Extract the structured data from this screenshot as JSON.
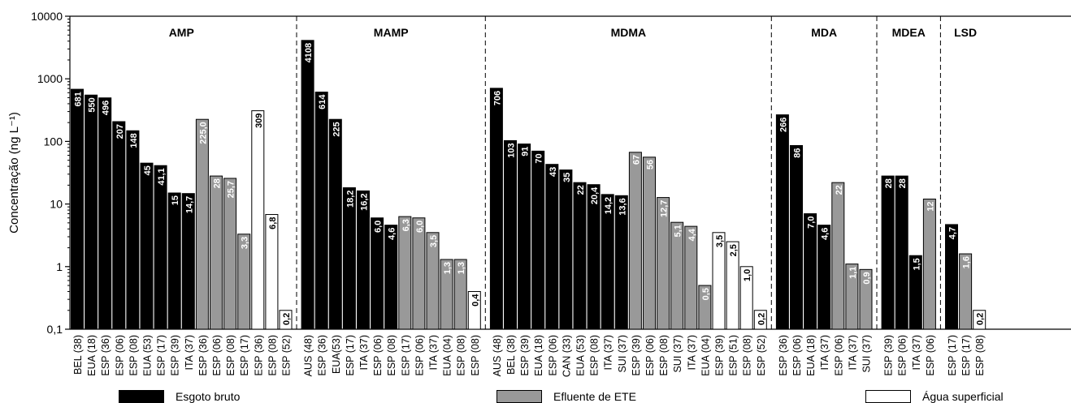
{
  "chart_data": {
    "type": "bar",
    "ylabel": "Concentração (ng L⁻¹)",
    "yscale": "log",
    "ylim": [
      0.1,
      10000
    ],
    "yticks": [
      "0,1",
      "1",
      "10",
      "100",
      "1000",
      "10000"
    ],
    "colors": {
      "Esgoto bruto": "#000000",
      "Efluente de ETE": "#999999",
      "Água superficial": "#ffffff"
    },
    "legend": [
      {
        "name": "Esgoto bruto",
        "color": "#000000"
      },
      {
        "name": "Efluente de ETE",
        "color": "#999999"
      },
      {
        "name": "Água superficial",
        "color": "#ffffff"
      }
    ],
    "groups": [
      {
        "name": "AMP",
        "bars": [
          {
            "label": "BEL (38)",
            "value": 681,
            "text": "681",
            "type": "Esgoto bruto"
          },
          {
            "label": "EUA (18)",
            "value": 550,
            "text": "550",
            "type": "Esgoto bruto"
          },
          {
            "label": "ESP (36)",
            "value": 496,
            "text": "496",
            "type": "Esgoto bruto"
          },
          {
            "label": "ESP (06)",
            "value": 207,
            "text": "207",
            "type": "Esgoto bruto"
          },
          {
            "label": "ESP (08)",
            "value": 148,
            "text": "148",
            "type": "Esgoto bruto"
          },
          {
            "label": "EUA (53)",
            "value": 45,
            "text": "45",
            "type": "Esgoto bruto"
          },
          {
            "label": "ESP (17)",
            "value": 41.1,
            "text": "41,1",
            "type": "Esgoto bruto"
          },
          {
            "label": "ESP (39)",
            "value": 15,
            "text": "15",
            "type": "Esgoto bruto"
          },
          {
            "label": "ITA (37)",
            "value": 14.7,
            "text": "14,7",
            "type": "Esgoto bruto"
          },
          {
            "label": "ESP (36)",
            "value": 225.0,
            "text": "225,0",
            "type": "Efluente de ETE"
          },
          {
            "label": "ESP (06)",
            "value": 28,
            "text": "28",
            "type": "Efluente de ETE"
          },
          {
            "label": "ESP (08)",
            "value": 25.7,
            "text": "25,7",
            "type": "Efluente de ETE"
          },
          {
            "label": "ESP (17)",
            "value": 3.3,
            "text": "3,3",
            "type": "Efluente de ETE"
          },
          {
            "label": "ESP (36)",
            "value": 309,
            "text": "309",
            "type": "Água superficial"
          },
          {
            "label": "ESP (08)",
            "value": 6.8,
            "text": "6,8",
            "type": "Água superficial"
          },
          {
            "label": "ESP (52)",
            "value": 0.2,
            "text": "0,2",
            "type": "Água superficial"
          }
        ]
      },
      {
        "name": "MAMP",
        "bars": [
          {
            "label": "AUS (48)",
            "value": 4108,
            "text": "4108",
            "type": "Esgoto bruto"
          },
          {
            "label": "ESP (36)",
            "value": 614,
            "text": "614",
            "type": "Esgoto bruto"
          },
          {
            "label": "EUA(53)",
            "value": 225,
            "text": "225",
            "type": "Esgoto bruto"
          },
          {
            "label": "ESP (17)",
            "value": 18.2,
            "text": "18,2",
            "type": "Esgoto bruto"
          },
          {
            "label": "ITA (37)",
            "value": 16.2,
            "text": "16,2",
            "type": "Esgoto bruto"
          },
          {
            "label": "ESP (06)",
            "value": 6.0,
            "text": "6,0",
            "type": "Esgoto bruto"
          },
          {
            "label": "ESP (08)",
            "value": 4.6,
            "text": "4,6",
            "type": "Esgoto bruto"
          },
          {
            "label": "ESP (17)",
            "value": 6.3,
            "text": "6,3",
            "type": "Efluente de ETE"
          },
          {
            "label": "ESP (06)",
            "value": 6.0,
            "text": "6,0",
            "type": "Efluente de ETE"
          },
          {
            "label": "ITA (37)",
            "value": 3.5,
            "text": "3,5",
            "type": "Efluente de ETE"
          },
          {
            "label": "EUA (04)",
            "value": 1.3,
            "text": "1,3",
            "type": "Efluente de ETE"
          },
          {
            "label": "ESP (08)",
            "value": 1.3,
            "text": "1,3",
            "type": "Efluente de ETE"
          },
          {
            "label": "ESP (08)",
            "value": 0.4,
            "text": "0,4",
            "type": "Água superficial"
          }
        ]
      },
      {
        "name": "MDMA",
        "bars": [
          {
            "label": "AUS (48)",
            "value": 706,
            "text": "706",
            "type": "Esgoto bruto"
          },
          {
            "label": "BEL (38)",
            "value": 103,
            "text": "103",
            "type": "Esgoto bruto"
          },
          {
            "label": "ESP (39)",
            "value": 91,
            "text": "91",
            "type": "Esgoto bruto"
          },
          {
            "label": "EUA (18)",
            "value": 70,
            "text": "70",
            "type": "Esgoto bruto"
          },
          {
            "label": "ESP (06)",
            "value": 43,
            "text": "43",
            "type": "Esgoto bruto"
          },
          {
            "label": "CAN (33)",
            "value": 35,
            "text": "35",
            "type": "Esgoto bruto"
          },
          {
            "label": "EUA (53)",
            "value": 22,
            "text": "22",
            "type": "Esgoto bruto"
          },
          {
            "label": "ESP (08)",
            "value": 20.4,
            "text": "20,4",
            "type": "Esgoto bruto"
          },
          {
            "label": "ITA (37)",
            "value": 14.2,
            "text": "14,2",
            "type": "Esgoto bruto"
          },
          {
            "label": "SUI (37)",
            "value": 13.6,
            "text": "13,6",
            "type": "Esgoto bruto"
          },
          {
            "label": "ESP (39)",
            "value": 67,
            "text": "67",
            "type": "Efluente de ETE"
          },
          {
            "label": "ESP (06)",
            "value": 56,
            "text": "56",
            "type": "Efluente de ETE"
          },
          {
            "label": "ESP (08)",
            "value": 12.7,
            "text": "12,7",
            "type": "Efluente de ETE"
          },
          {
            "label": "SUI (37)",
            "value": 5.1,
            "text": "5,1",
            "type": "Efluente de ETE"
          },
          {
            "label": "ITA (37)",
            "value": 4.4,
            "text": "4,4",
            "type": "Efluente de ETE"
          },
          {
            "label": "EUA (04)",
            "value": 0.5,
            "text": "0,5",
            "type": "Efluente de ETE"
          },
          {
            "label": "ESP (39)",
            "value": 3.5,
            "text": "3,5",
            "type": "Água superficial"
          },
          {
            "label": "ESP (51)",
            "value": 2.5,
            "text": "2,5",
            "type": "Água superficial"
          },
          {
            "label": "ESP (08)",
            "value": 1.0,
            "text": "1,0",
            "type": "Água superficial"
          },
          {
            "label": "ESP (52)",
            "value": 0.2,
            "text": "0,2",
            "type": "Água superficial"
          }
        ]
      },
      {
        "name": "MDA",
        "bars": [
          {
            "label": "ESP (36)",
            "value": 266,
            "text": "266",
            "type": "Esgoto bruto"
          },
          {
            "label": "ESP (06)",
            "value": 86,
            "text": "86",
            "type": "Esgoto bruto"
          },
          {
            "label": "EUA (18)",
            "value": 7.0,
            "text": "7,0",
            "type": "Esgoto bruto"
          },
          {
            "label": "ITA (37)",
            "value": 4.6,
            "text": "4,6",
            "type": "Esgoto bruto"
          },
          {
            "label": "ESP (06)",
            "value": 22,
            "text": "22",
            "type": "Efluente de ETE"
          },
          {
            "label": "ITA (37)",
            "value": 1.1,
            "text": "1,1",
            "type": "Efluente de ETE"
          },
          {
            "label": "SUI (37)",
            "value": 0.9,
            "text": "0,9",
            "type": "Efluente de ETE"
          }
        ]
      },
      {
        "name": "MDEA",
        "bars": [
          {
            "label": "ESP (39)",
            "value": 28,
            "text": "28",
            "type": "Esgoto bruto"
          },
          {
            "label": "ESP (06)",
            "value": 28,
            "text": "28",
            "type": "Esgoto bruto"
          },
          {
            "label": "ITA (37)",
            "value": 1.5,
            "text": "1,5",
            "type": "Esgoto bruto"
          },
          {
            "label": "ESP (06)",
            "value": 12,
            "text": "12",
            "type": "Efluente de ETE"
          }
        ]
      },
      {
        "name": "LSD",
        "bars": [
          {
            "label": "ESP (17)",
            "value": 4.7,
            "text": "4,7",
            "type": "Esgoto bruto"
          },
          {
            "label": "ESP (17)",
            "value": 1.6,
            "text": "1,6",
            "type": "Efluente de ETE"
          },
          {
            "label": "ESP (08)",
            "value": 0.2,
            "text": "0,2",
            "type": "Água superficial"
          }
        ]
      }
    ]
  }
}
